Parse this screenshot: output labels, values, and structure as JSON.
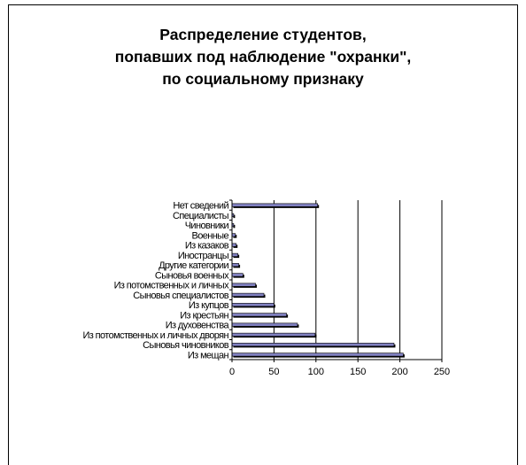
{
  "chart_data": {
    "type": "bar",
    "orientation": "horizontal",
    "title_lines": [
      "Распределение студентов,",
      "попавших под наблюдение \"охранки\",",
      "по социальному признаку"
    ],
    "categories": [
      "Из мещан",
      "Сыновья чиновников",
      "Из потомственных и личных дворян",
      "Из духовенства",
      "Из крестьян",
      "Из купцов",
      "Сыновья специалистов",
      "Из потомственных и личных",
      "Сыновья военных",
      "Другие категории",
      "Иностранцы",
      "Из казаков",
      "Военные",
      "Чиновники",
      "Специалисты",
      "Нет сведений"
    ],
    "values": [
      204,
      193,
      99,
      78,
      65,
      50,
      38,
      28,
      13,
      8,
      7,
      5,
      4,
      2,
      2,
      102
    ],
    "xlim": [
      0,
      250
    ],
    "xticks": [
      "0",
      "50",
      "100",
      "150",
      "200",
      "250"
    ],
    "grid": "vertical",
    "bar_color": "#8080c0",
    "bar_edge_color": "#000000",
    "legend": "none"
  }
}
